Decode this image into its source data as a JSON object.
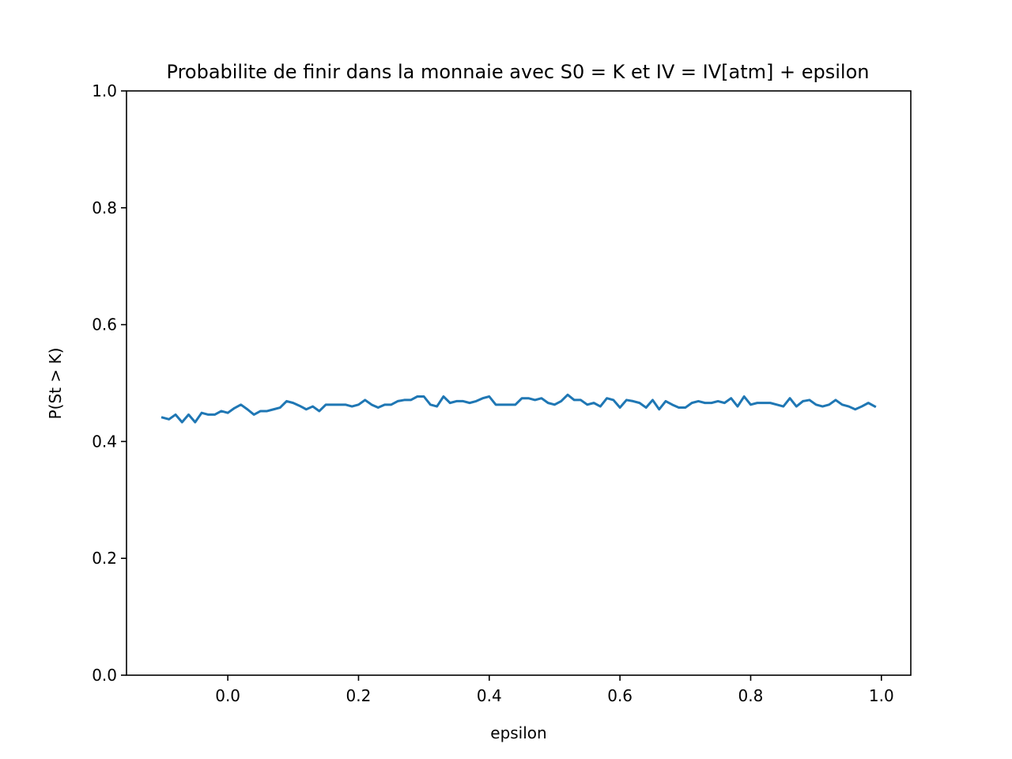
{
  "chart_data": {
    "type": "line",
    "title": "Probabilite de finir dans la monnaie avec S0 = K et IV = IV[atm] + epsilon",
    "xlabel": "epsilon",
    "ylabel": "P(St > K)",
    "xlim": [
      -0.155,
      1.045
    ],
    "ylim": [
      0.0,
      1.0
    ],
    "xticks": [
      0.0,
      0.2,
      0.4,
      0.6,
      0.8,
      1.0
    ],
    "xtick_labels": [
      "0.0",
      "0.2",
      "0.4",
      "0.6",
      "0.8",
      "1.0"
    ],
    "yticks": [
      0.0,
      0.2,
      0.4,
      0.6,
      0.8,
      1.0
    ],
    "ytick_labels": [
      "0.0",
      "0.2",
      "0.4",
      "0.6",
      "0.8",
      "1.0"
    ],
    "grid": false,
    "series": [
      {
        "color": "#1f77b4",
        "x": [
          -0.1,
          -0.09,
          -0.08,
          -0.07,
          -0.06,
          -0.05,
          -0.04,
          -0.03,
          -0.02,
          -0.01,
          0.0,
          0.01,
          0.02,
          0.03,
          0.04,
          0.05,
          0.06,
          0.07,
          0.08,
          0.09,
          0.1,
          0.11,
          0.12,
          0.13,
          0.14,
          0.15,
          0.16,
          0.17,
          0.18,
          0.19,
          0.2,
          0.21,
          0.22,
          0.23,
          0.24,
          0.25,
          0.26,
          0.27,
          0.28,
          0.29,
          0.3,
          0.31,
          0.32,
          0.33,
          0.34,
          0.35,
          0.36,
          0.37,
          0.38,
          0.39,
          0.4,
          0.41,
          0.42,
          0.43,
          0.44,
          0.45,
          0.46,
          0.47,
          0.48,
          0.49,
          0.5,
          0.51,
          0.52,
          0.53,
          0.54,
          0.55,
          0.56,
          0.57,
          0.58,
          0.59,
          0.6,
          0.61,
          0.62,
          0.63,
          0.64,
          0.65,
          0.66,
          0.67,
          0.68,
          0.69,
          0.7,
          0.71,
          0.72,
          0.73,
          0.74,
          0.75,
          0.76,
          0.77,
          0.78,
          0.79,
          0.8,
          0.81,
          0.82,
          0.83,
          0.84,
          0.85,
          0.86,
          0.87,
          0.88,
          0.89,
          0.9,
          0.91,
          0.92,
          0.93,
          0.94,
          0.95,
          0.96,
          0.97,
          0.98,
          0.99
        ],
        "y": [
          0.441,
          0.438,
          0.446,
          0.433,
          0.446,
          0.433,
          0.449,
          0.446,
          0.446,
          0.452,
          0.449,
          0.457,
          0.463,
          0.455,
          0.446,
          0.452,
          0.452,
          0.455,
          0.458,
          0.469,
          0.466,
          0.461,
          0.455,
          0.46,
          0.452,
          0.463,
          0.463,
          0.463,
          0.463,
          0.46,
          0.463,
          0.471,
          0.463,
          0.458,
          0.463,
          0.463,
          0.469,
          0.471,
          0.471,
          0.477,
          0.477,
          0.463,
          0.46,
          0.477,
          0.466,
          0.469,
          0.469,
          0.466,
          0.469,
          0.474,
          0.477,
          0.463,
          0.463,
          0.463,
          0.463,
          0.474,
          0.474,
          0.471,
          0.474,
          0.466,
          0.463,
          0.469,
          0.48,
          0.471,
          0.471,
          0.463,
          0.466,
          0.46,
          0.474,
          0.471,
          0.458,
          0.471,
          0.469,
          0.466,
          0.458,
          0.471,
          0.455,
          0.469,
          0.463,
          0.458,
          0.458,
          0.466,
          0.469,
          0.466,
          0.466,
          0.469,
          0.466,
          0.474,
          0.46,
          0.477,
          0.463,
          0.466,
          0.466,
          0.466,
          0.463,
          0.46,
          0.474,
          0.46,
          0.469,
          0.471,
          0.463,
          0.46,
          0.463,
          0.471,
          0.463,
          0.46,
          0.455,
          0.46,
          0.466,
          0.46
        ]
      }
    ]
  }
}
